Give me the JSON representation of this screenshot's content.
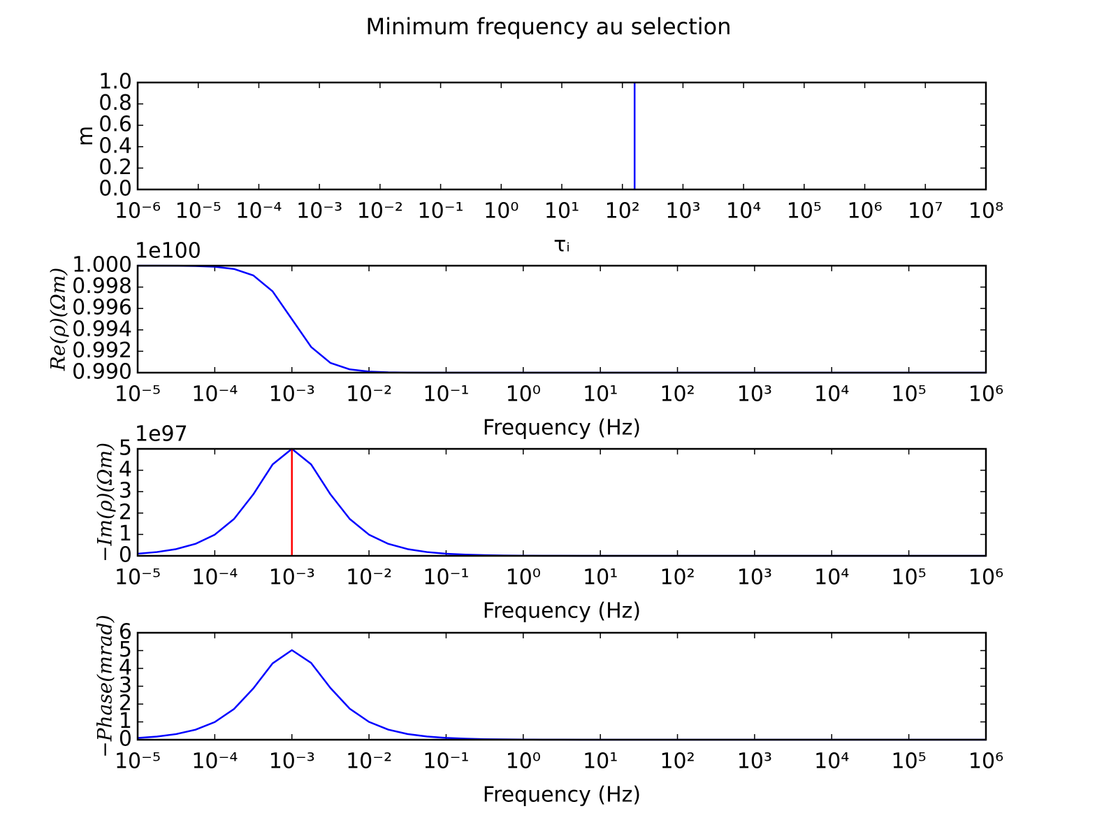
{
  "title": "Minimum frequency au selection",
  "chart_data": [
    {
      "type": "vline",
      "xscale": "log",
      "xlabel": "τᵢ",
      "ylabel": "m",
      "xlim": [
        1e-06,
        100000000.0
      ],
      "xticks": [
        {
          "value": 1e-06,
          "label": "10⁻⁶"
        },
        {
          "value": 1e-05,
          "label": "10⁻⁵"
        },
        {
          "value": 0.0001,
          "label": "10⁻⁴"
        },
        {
          "value": 0.001,
          "label": "10⁻³"
        },
        {
          "value": 0.01,
          "label": "10⁻²"
        },
        {
          "value": 0.1,
          "label": "10⁻¹"
        },
        {
          "value": 1,
          "label": "10⁰"
        },
        {
          "value": 10,
          "label": "10¹"
        },
        {
          "value": 100,
          "label": "10²"
        },
        {
          "value": 1000,
          "label": "10³"
        },
        {
          "value": 10000,
          "label": "10⁴"
        },
        {
          "value": 100000,
          "label": "10⁵"
        },
        {
          "value": 1000000,
          "label": "10⁶"
        },
        {
          "value": 10000000,
          "label": "10⁷"
        },
        {
          "value": 100000000,
          "label": "10⁸"
        }
      ],
      "ylim": [
        0,
        1
      ],
      "yticks": [
        {
          "value": 0,
          "label": "0.0"
        },
        0.2,
        0.4,
        0.6,
        0.8,
        {
          "value": 1,
          "label": "1.0"
        }
      ],
      "series": [
        {
          "x": [
            159.15
          ],
          "values": [
            1
          ],
          "color": "#0000ff"
        }
      ]
    },
    {
      "type": "line",
      "xscale": "log",
      "xlabel": "Frequency (Hz)",
      "ylabel": "Re(ρ)(Ωm)",
      "offset_text": "1e100",
      "xlim": [
        1e-05,
        1000000.0
      ],
      "xticks": [
        {
          "value": 1e-05,
          "label": "10⁻⁵"
        },
        {
          "value": 0.0001,
          "label": "10⁻⁴"
        },
        {
          "value": 0.001,
          "label": "10⁻³"
        },
        {
          "value": 0.01,
          "label": "10⁻²"
        },
        {
          "value": 0.1,
          "label": "10⁻¹"
        },
        {
          "value": 1,
          "label": "10⁰"
        },
        {
          "value": 10,
          "label": "10¹"
        },
        {
          "value": 100,
          "label": "10²"
        },
        {
          "value": 1000,
          "label": "10³"
        },
        {
          "value": 10000,
          "label": "10⁴"
        },
        {
          "value": 100000,
          "label": "10⁵"
        },
        {
          "value": 1000000,
          "label": "10⁶"
        }
      ],
      "ylim": [
        0.99,
        1.0
      ],
      "yticks": [
        {
          "value": 0.99,
          "label": "0.990"
        },
        0.992,
        0.994,
        0.996,
        0.998,
        {
          "value": 1.0,
          "label": "1.000"
        }
      ],
      "x": [
        1e-05,
        1.778e-05,
        3.162e-05,
        5.623e-05,
        0.0001,
        0.0001778,
        0.0003162,
        0.0005623,
        0.001,
        0.001778,
        0.003162,
        0.005623,
        0.01,
        0.01778,
        0.03162,
        0.05623,
        0.1,
        0.1778,
        0.3162,
        0.5623,
        1,
        1.778,
        3.162,
        5.623,
        10,
        17.78,
        31.62,
        56.23,
        100,
        177.8,
        316.2,
        562.3,
        1000,
        1778,
        3162,
        5623,
        10000,
        17783,
        31623,
        56234,
        100000,
        177828,
        316228,
        562341,
        1000000
      ],
      "series": [
        {
          "color": "#0000ff",
          "values": [
            1.0,
            1.0,
            0.99999,
            0.99997,
            0.9999,
            0.99969,
            0.99909,
            0.9976,
            0.995,
            0.9924,
            0.99091,
            0.99031,
            0.9901,
            0.99003,
            0.99001,
            0.99,
            0.99,
            0.99,
            0.99,
            0.99,
            0.99,
            0.99,
            0.99,
            0.99,
            0.99,
            0.99,
            0.99,
            0.99,
            0.99,
            0.99,
            0.99,
            0.99,
            0.99,
            0.99,
            0.99,
            0.99,
            0.99,
            0.99,
            0.99,
            0.99,
            0.99,
            0.99,
            0.99,
            0.99,
            0.99
          ]
        }
      ]
    },
    {
      "type": "line",
      "xscale": "log",
      "xlabel": "Frequency (Hz)",
      "ylabel": "−Im(ρ)(Ωm)",
      "offset_text": "1e97",
      "xlim": [
        1e-05,
        1000000.0
      ],
      "xticks": [
        {
          "value": 1e-05,
          "label": "10⁻⁵"
        },
        {
          "value": 0.0001,
          "label": "10⁻⁴"
        },
        {
          "value": 0.001,
          "label": "10⁻³"
        },
        {
          "value": 0.01,
          "label": "10⁻²"
        },
        {
          "value": 0.1,
          "label": "10⁻¹"
        },
        {
          "value": 1,
          "label": "10⁰"
        },
        {
          "value": 10,
          "label": "10¹"
        },
        {
          "value": 100,
          "label": "10²"
        },
        {
          "value": 1000,
          "label": "10³"
        },
        {
          "value": 10000,
          "label": "10⁴"
        },
        {
          "value": 100000,
          "label": "10⁵"
        },
        {
          "value": 1000000,
          "label": "10⁶"
        }
      ],
      "ylim": [
        0,
        5
      ],
      "yticks": [
        0,
        1,
        2,
        3,
        4,
        5
      ],
      "x": [
        1e-05,
        1.778e-05,
        3.162e-05,
        5.623e-05,
        0.0001,
        0.0001778,
        0.0003162,
        0.0005623,
        0.001,
        0.001778,
        0.003162,
        0.005623,
        0.01,
        0.01778,
        0.03162,
        0.05623,
        0.1,
        0.1778,
        0.3162,
        0.5623,
        1,
        1.778,
        3.162,
        5.623,
        10,
        17.78,
        31.62,
        56.23,
        100,
        177.8,
        316.2,
        562.3,
        1000,
        1778,
        3162,
        5623,
        10000,
        17783,
        31623,
        56234,
        100000,
        177828,
        316228,
        562341,
        1000000
      ],
      "series": [
        {
          "color": "#0000ff",
          "values": [
            0.1,
            0.1778,
            0.3159,
            0.5606,
            0.9901,
            1.7238,
            2.8748,
            4.2724,
            5,
            4.2724,
            2.8748,
            1.7238,
            0.9901,
            0.5606,
            0.3159,
            0.1778,
            0.1,
            0.0562,
            0.0316,
            0.0178,
            0.01,
            0.0056,
            0.0032,
            0.0018,
            0.001,
            0.0006,
            0.0003,
            0.0002,
            0.0001,
            0.0001,
            0,
            0,
            0,
            0,
            0,
            0,
            0,
            0,
            0,
            0,
            0,
            0,
            0,
            0,
            0
          ]
        },
        {
          "type": "vline",
          "x": [
            0.001
          ],
          "values": [
            5
          ],
          "color": "#ff0000"
        }
      ]
    },
    {
      "type": "line",
      "xscale": "log",
      "xlabel": "Frequency (Hz)",
      "ylabel": "−Phase(mrad)",
      "xlim": [
        1e-05,
        1000000.0
      ],
      "xticks": [
        {
          "value": 1e-05,
          "label": "10⁻⁵"
        },
        {
          "value": 0.0001,
          "label": "10⁻⁴"
        },
        {
          "value": 0.001,
          "label": "10⁻³"
        },
        {
          "value": 0.01,
          "label": "10⁻²"
        },
        {
          "value": 0.1,
          "label": "10⁻¹"
        },
        {
          "value": 1,
          "label": "10⁰"
        },
        {
          "value": 10,
          "label": "10¹"
        },
        {
          "value": 100,
          "label": "10²"
        },
        {
          "value": 1000,
          "label": "10³"
        },
        {
          "value": 10000,
          "label": "10⁴"
        },
        {
          "value": 100000,
          "label": "10⁵"
        },
        {
          "value": 1000000,
          "label": "10⁶"
        }
      ],
      "ylim": [
        0,
        6
      ],
      "yticks": [
        0,
        1,
        2,
        3,
        4,
        5,
        6
      ],
      "x": [
        1e-05,
        1.778e-05,
        3.162e-05,
        5.623e-05,
        0.0001,
        0.0001778,
        0.0003162,
        0.0005623,
        0.001,
        0.001778,
        0.003162,
        0.005623,
        0.01,
        0.01778,
        0.03162,
        0.05623,
        0.1,
        0.1778,
        0.3162,
        0.5623,
        1,
        1.778,
        3.162,
        5.623,
        10,
        17.78,
        31.62,
        56.23,
        100,
        177.8,
        316.2,
        562.3,
        1000,
        1778,
        3162,
        5623,
        10000,
        17783,
        31623,
        56234,
        100000,
        177828,
        316228,
        562341,
        1000000
      ],
      "series": [
        {
          "color": "#0000ff",
          "values": [
            0.1,
            0.1778,
            0.3159,
            0.5606,
            0.9902,
            1.7243,
            2.8774,
            4.2827,
            5.0251,
            4.3051,
            2.9012,
            1.7407,
            1.0,
            0.5662,
            0.3191,
            0.1796,
            0.101,
            0.0568,
            0.0319,
            0.018,
            0.0101,
            0.0057,
            0.0032,
            0.0018,
            0.001,
            0.0006,
            0.0003,
            0.0002,
            0.0001,
            0.0001,
            0,
            0,
            0,
            0,
            0,
            0,
            0,
            0,
            0,
            0,
            0,
            0,
            0,
            0,
            0
          ]
        }
      ]
    }
  ]
}
